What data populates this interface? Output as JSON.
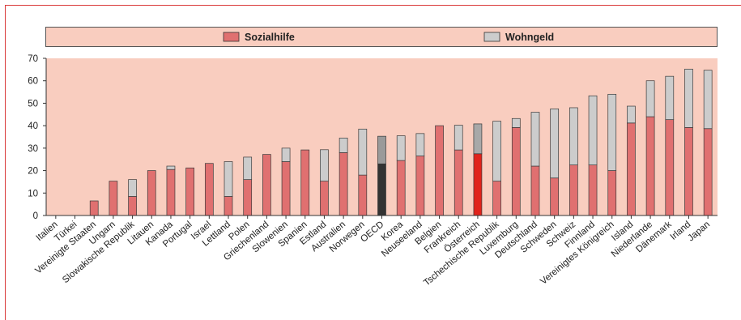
{
  "chart_data": {
    "type": "bar",
    "stacked": true,
    "title": "",
    "xlabel": "",
    "ylabel": "",
    "ylim": [
      0,
      70
    ],
    "yticks": [
      0,
      10,
      20,
      30,
      40,
      50,
      60,
      70
    ],
    "grid": false,
    "legend_position": "top",
    "categories": [
      "Italien",
      "Türkei",
      "Vereinigte Staaten",
      "Ungarn",
      "Slowakische Republik",
      "Litauen",
      "Kanada",
      "Portugal",
      "Israel",
      "Lettland",
      "Polen",
      "Griechenland",
      "Slowenien",
      "Spanien",
      "Estland",
      "Australien",
      "Norwegen",
      "OECD",
      "Korea",
      "Neuseeland",
      "Belgien",
      "Frankreich",
      "Österreich",
      "Tschechische Republik",
      "Luxemburg",
      "Deutschland",
      "Schweden",
      "Schweiz",
      "Finnland",
      "Vereinigtes Königreich",
      "Island",
      "Niederlande",
      "Dänemark",
      "Irland",
      "Japan"
    ],
    "series": [
      {
        "name": "Sozialhilfe",
        "color": "#e07070",
        "values": [
          0,
          0,
          6.5,
          15.3,
          8.5,
          20,
          20.5,
          21.2,
          23.2,
          8.5,
          16,
          27.2,
          24,
          29.2,
          15.3,
          28,
          18,
          23,
          24.5,
          26.5,
          40,
          29.2,
          27.5,
          15.3,
          39.2,
          22,
          16.7,
          22.5,
          22.5,
          20,
          41.2,
          44,
          42.7,
          39.2,
          38.7
        ]
      },
      {
        "name": "Wohngeld",
        "color": "#cccccc",
        "values": [
          0,
          0,
          0,
          0,
          7.5,
          0,
          1.5,
          0,
          0,
          15.5,
          10,
          0,
          6,
          0,
          14,
          6.5,
          20.5,
          12.3,
          11,
          10,
          0,
          11,
          13.3,
          26.7,
          4,
          24,
          30.8,
          25.5,
          30.8,
          34,
          7.5,
          16,
          19.3,
          26,
          26
        ]
      }
    ],
    "highlight": {
      "OECD": {
        "Sozialhilfe": "#333333",
        "Wohngeld": "#9a9a9a"
      },
      "Österreich": {
        "Sozialhilfe": "#e0231b",
        "Wohngeld": "#a8a8a8"
      }
    }
  },
  "colors": {
    "plot_background": "#f9cdbf",
    "frame_border": "#d93a3a",
    "bar_stroke": "#333333"
  }
}
